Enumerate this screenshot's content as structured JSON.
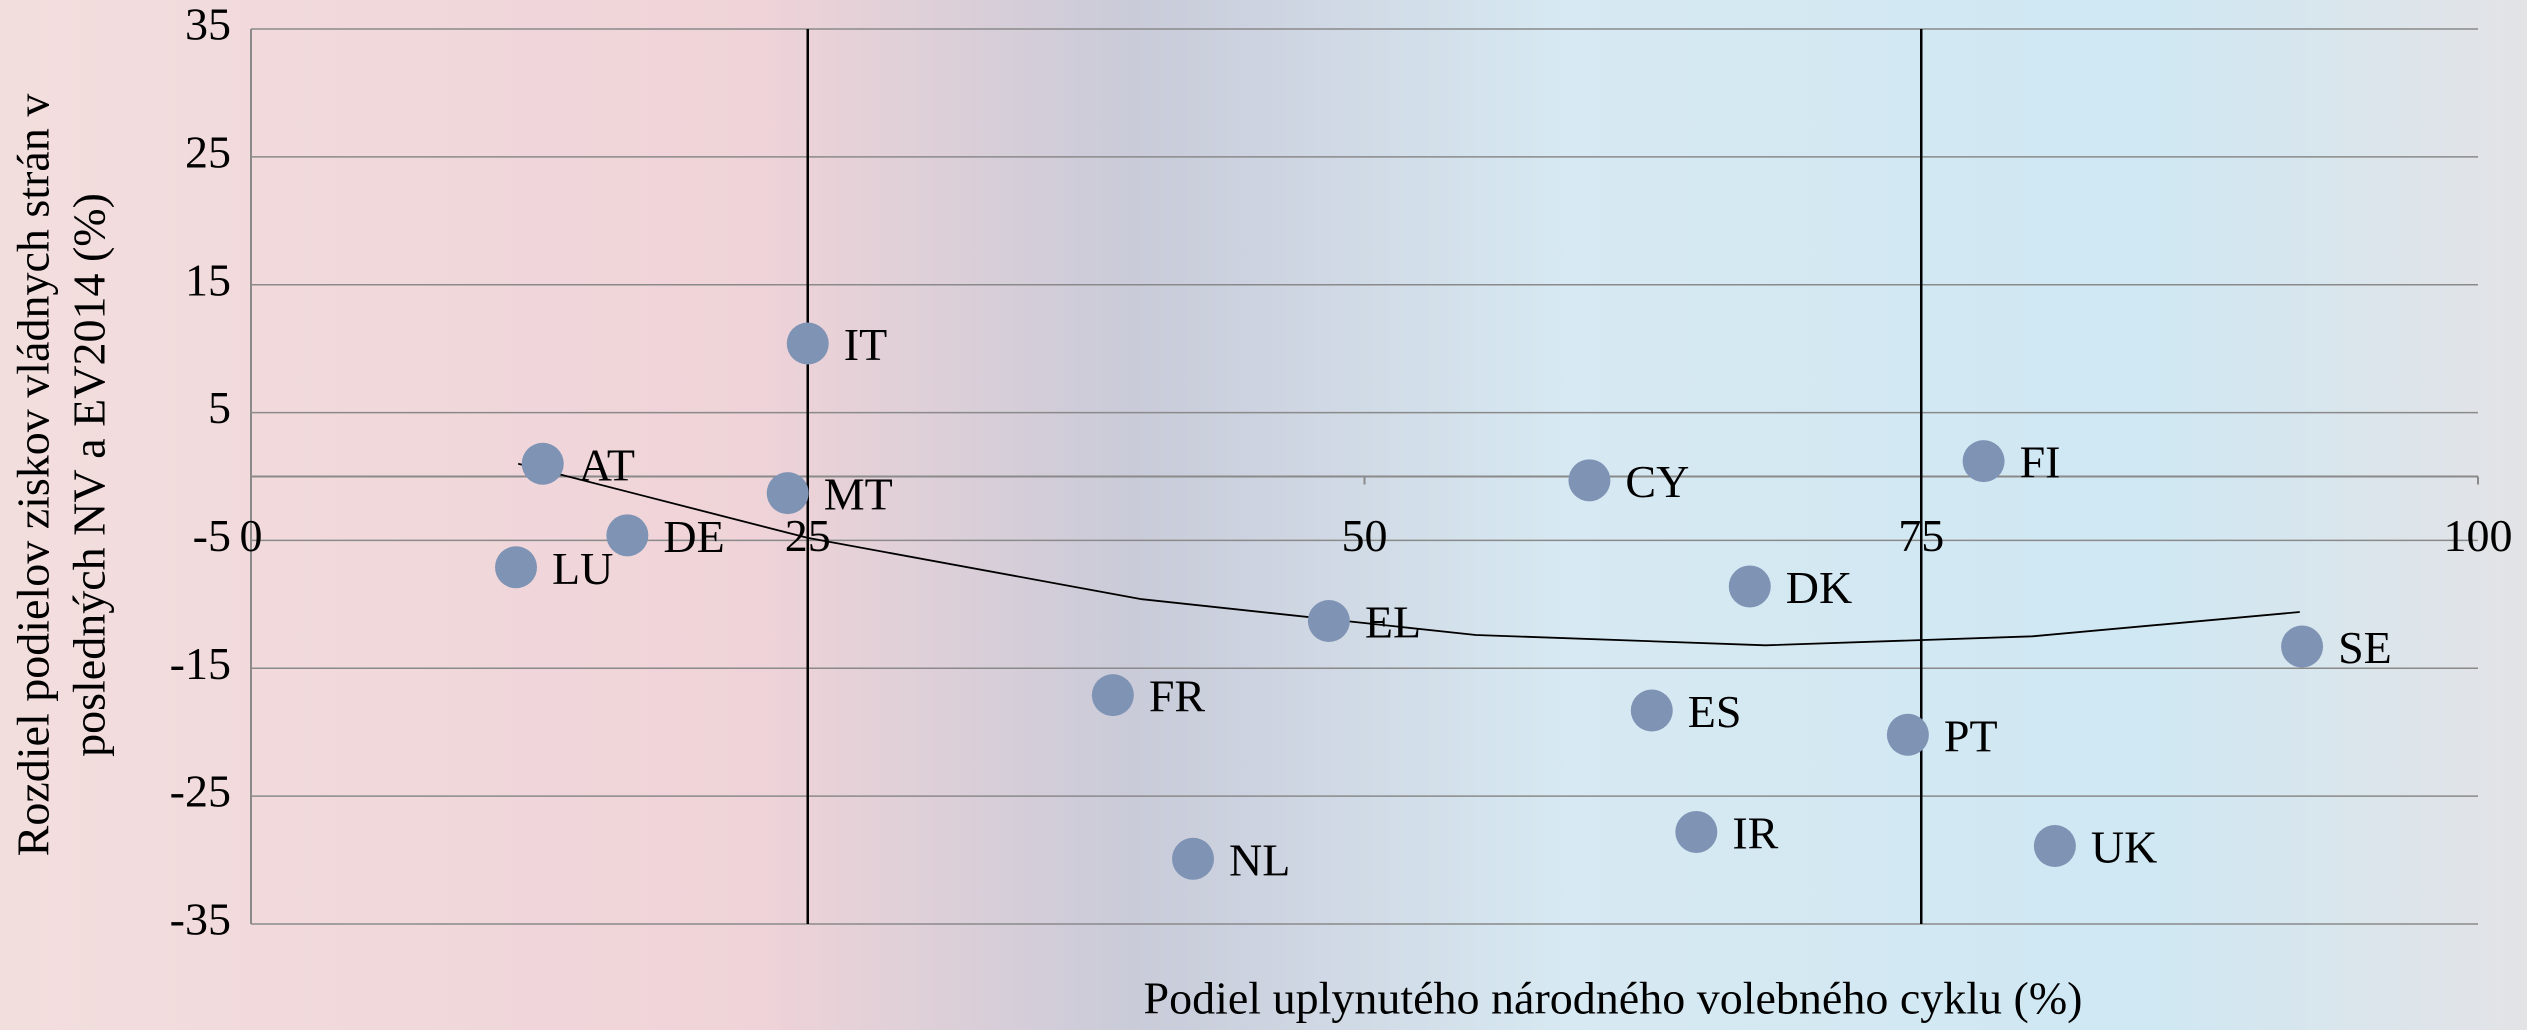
{
  "chart_data": {
    "type": "scatter",
    "x_label": "Podiel uplynutého národného volebného cyklu (%)",
    "y_label": [
      "Rozdiel podielov ziskov vládnych strán v",
      "posledných NV a EV2014 (%)"
    ],
    "labels": [
      "AT",
      "DE",
      "LU",
      "IT",
      "MT",
      "FR",
      "NL",
      "EL",
      "CY",
      "ES",
      "IR",
      "DK",
      "PT",
      "FI",
      "UK",
      "SE"
    ],
    "x": [
      13.1,
      16.9,
      11.9,
      25.0,
      24.1,
      38.7,
      42.3,
      48.4,
      60.1,
      62.9,
      64.9,
      67.3,
      74.4,
      77.8,
      81.0,
      92.1
    ],
    "values": [
      1.0,
      -4.6,
      -7.1,
      10.4,
      -1.3,
      -17.1,
      -29.9,
      -11.3,
      -0.3,
      -18.3,
      -27.8,
      -8.6,
      -20.2,
      1.2,
      -28.9,
      -13.3
    ],
    "color": "#7f93b5",
    "trendline": {
      "x": [
        12,
        25,
        40,
        55,
        68,
        80,
        92
      ],
      "y": [
        1.0,
        -4.8,
        -9.6,
        -12.4,
        -13.2,
        -12.5,
        -10.6
      ]
    },
    "vlines": [
      25,
      75
    ],
    "xlim": [
      0,
      100
    ],
    "xticks": [
      0,
      25,
      50,
      75,
      100
    ],
    "ylim": [
      -35,
      35
    ],
    "yticks": [
      35,
      25,
      15,
      5,
      -5,
      -15,
      -25,
      -35
    ],
    "grid": true
  }
}
